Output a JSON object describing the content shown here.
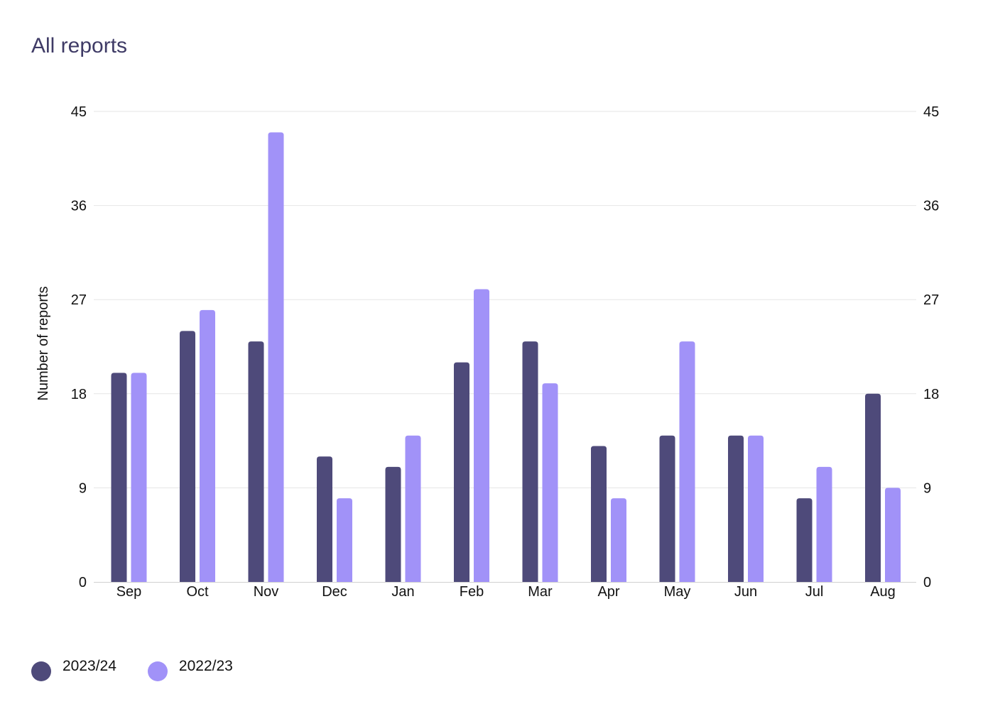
{
  "title": "All reports",
  "chart_data": {
    "type": "bar",
    "title": "All reports",
    "xlabel": "",
    "ylabel": "Number of reports",
    "ylim": [
      0,
      45
    ],
    "yticks": [
      0,
      9,
      18,
      27,
      36,
      45
    ],
    "grid": true,
    "secondary_y_axis": true,
    "legend_position": "bottom-left",
    "categories": [
      "Sep",
      "Oct",
      "Nov",
      "Dec",
      "Jan",
      "Feb",
      "Mar",
      "Apr",
      "May",
      "Jun",
      "Jul",
      "Aug"
    ],
    "series": [
      {
        "name": "2023/24",
        "color": "#4e4a7a",
        "values": [
          20,
          24,
          23,
          12,
          11,
          21,
          23,
          13,
          14,
          14,
          8,
          18
        ]
      },
      {
        "name": "2022/23",
        "color": "#a192f8",
        "values": [
          20,
          26,
          43,
          8,
          14,
          28,
          19,
          8,
          23,
          14,
          11,
          9
        ]
      }
    ]
  }
}
